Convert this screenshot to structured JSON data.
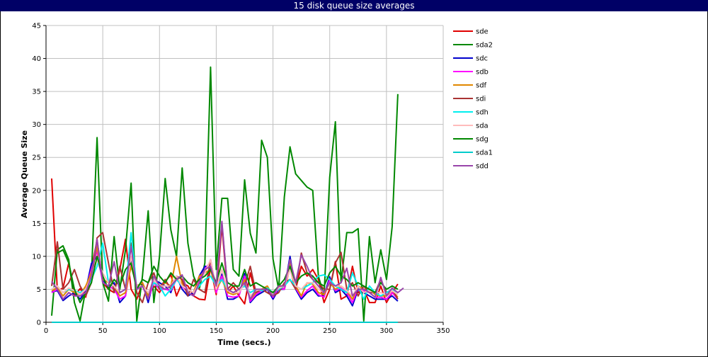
{
  "title": "15 disk queue size averages",
  "chart_data": {
    "type": "line",
    "title": "15 disk queue size averages",
    "xlabel": "Time (secs.)",
    "ylabel": "Average Queue Size",
    "xlim": [
      0,
      350
    ],
    "ylim": [
      0,
      45
    ],
    "xticks": [
      0,
      50,
      100,
      150,
      200,
      250,
      300,
      350
    ],
    "yticks": [
      0,
      5,
      10,
      15,
      20,
      25,
      30,
      35,
      40,
      45
    ],
    "grid": true,
    "legend_position": "right",
    "x": [
      5,
      10,
      15,
      20,
      25,
      30,
      35,
      40,
      45,
      50,
      55,
      60,
      65,
      70,
      75,
      80,
      85,
      90,
      95,
      100,
      105,
      110,
      115,
      120,
      125,
      130,
      135,
      140,
      145,
      150,
      155,
      160,
      165,
      170,
      175,
      180,
      185,
      190,
      195,
      200,
      205,
      210,
      215,
      220,
      225,
      230,
      235,
      240,
      245,
      250,
      255,
      260,
      265,
      270,
      275,
      280,
      285,
      290,
      295,
      300,
      305,
      310,
      315
    ],
    "series": [
      {
        "name": "sde",
        "color": "#e00000",
        "values": [
          21.8,
          4.8,
          5.2,
          9.0,
          4.0,
          5.1,
          3.8,
          8.0,
          12.5,
          6.0,
          5.0,
          4.5,
          8.0,
          12.6,
          5.0,
          3.5,
          6.0,
          4.0,
          5.5,
          4.5,
          6.2,
          7.2,
          4.0,
          6.0,
          5.5,
          4.0,
          3.5,
          3.4,
          8.3,
          4.2,
          14.6,
          4.5,
          5.5,
          4.0,
          2.8,
          7.5,
          4.0,
          5.0,
          4.5,
          4.0,
          5.5,
          5.0,
          8.2,
          5.0,
          8.5,
          7.0,
          8.0,
          6.5,
          3.0,
          5.0,
          9.2,
          3.5,
          4.0,
          8.5,
          4.5,
          5.0,
          3.0,
          3.0,
          5.5,
          3.0,
          4.5,
          5.8,
          null
        ]
      },
      {
        "name": "sda2",
        "color": "#008800",
        "values": [
          1.0,
          11.0,
          11.6,
          9.5,
          3.0,
          0.2,
          5.0,
          7.0,
          28.0,
          6.0,
          3.2,
          13.0,
          5.0,
          11.0,
          21.1,
          0.2,
          7.0,
          16.9,
          3.0,
          10.0,
          21.8,
          14.0,
          10.0,
          23.4,
          12.0,
          7.0,
          5.0,
          9.0,
          38.7,
          8.0,
          18.8,
          18.8,
          8.0,
          7.0,
          21.6,
          13.5,
          10.5,
          27.6,
          25.0,
          9.6,
          5.0,
          19.0,
          26.6,
          22.5,
          21.5,
          20.5,
          20.0,
          7.0,
          4.0,
          22.0,
          30.4,
          6.0,
          13.6,
          13.6,
          14.2,
          0.2,
          13.0,
          6.0,
          11.0,
          6.5,
          14.5,
          34.6,
          null
        ]
      },
      {
        "name": "sdc",
        "color": "#0000cc",
        "values": [
          4.6,
          4.8,
          3.3,
          4.0,
          4.5,
          3.5,
          4.8,
          8.9,
          10.0,
          6.5,
          5.2,
          6.0,
          3.0,
          4.0,
          9.8,
          5.5,
          6.0,
          3.0,
          6.5,
          6.0,
          5.5,
          4.5,
          7.0,
          5.0,
          4.0,
          4.5,
          7.0,
          8.5,
          8.3,
          5.0,
          7.3,
          3.5,
          3.5,
          4.0,
          7.4,
          3.0,
          4.0,
          4.5,
          5.0,
          3.5,
          5.0,
          5.0,
          10.0,
          5.0,
          3.5,
          4.5,
          5.0,
          4.0,
          4.0,
          6.9,
          4.5,
          5.0,
          4.0,
          2.5,
          5.0,
          4.5,
          4.0,
          3.5,
          3.5,
          3.5,
          4.0,
          3.2,
          null
        ]
      },
      {
        "name": "sdb",
        "color": "#ff00ff",
        "values": [
          4.5,
          5.0,
          3.5,
          4.5,
          4.0,
          4.0,
          5.0,
          8.0,
          10.8,
          6.0,
          5.5,
          5.0,
          3.5,
          4.0,
          9.0,
          5.0,
          5.5,
          3.5,
          6.0,
          5.0,
          5.0,
          4.8,
          6.5,
          5.5,
          4.5,
          4.0,
          6.5,
          8.0,
          9.2,
          4.5,
          7.0,
          4.0,
          3.8,
          4.0,
          7.0,
          3.2,
          4.2,
          4.8,
          5.2,
          3.8,
          5.2,
          5.0,
          9.5,
          5.2,
          3.8,
          4.8,
          5.5,
          4.2,
          3.8,
          6.5,
          4.8,
          5.2,
          4.5,
          3.0,
          5.2,
          4.8,
          4.5,
          3.8,
          3.8,
          3.5,
          4.5,
          3.5,
          null
        ]
      },
      {
        "name": "sdf",
        "color": "#e08800",
        "values": [
          4.8,
          5.2,
          4.0,
          5.0,
          4.5,
          4.2,
          5.5,
          7.5,
          11.5,
          6.5,
          6.0,
          5.5,
          4.0,
          4.5,
          8.5,
          5.5,
          6.0,
          4.0,
          6.5,
          5.5,
          6.0,
          5.5,
          10.0,
          5.8,
          5.0,
          4.5,
          7.0,
          7.5,
          8.0,
          5.0,
          6.5,
          4.5,
          4.2,
          4.5,
          6.5,
          3.5,
          4.5,
          5.0,
          5.5,
          4.0,
          5.5,
          5.5,
          9.0,
          5.5,
          4.0,
          6.0,
          5.8,
          4.5,
          4.2,
          6.0,
          5.0,
          5.5,
          4.8,
          3.5,
          5.5,
          5.0,
          5.0,
          4.2,
          4.0,
          4.0,
          4.8,
          3.8,
          null
        ]
      },
      {
        "name": "sdi",
        "color": "#aa3333",
        "values": [
          5.5,
          12.2,
          5.0,
          6.0,
          8.0,
          5.5,
          4.0,
          6.0,
          12.8,
          13.6,
          9.0,
          4.5,
          8.5,
          5.0,
          12.0,
          4.5,
          3.0,
          6.0,
          7.5,
          5.0,
          6.5,
          5.0,
          7.0,
          6.5,
          4.0,
          6.5,
          5.0,
          4.5,
          9.5,
          5.0,
          15.0,
          5.0,
          6.0,
          5.0,
          5.5,
          8.5,
          4.5,
          5.0,
          4.5,
          4.0,
          4.5,
          6.0,
          6.5,
          5.0,
          10.5,
          7.5,
          6.5,
          6.0,
          5.0,
          5.0,
          9.0,
          10.6,
          5.0,
          6.0,
          4.0,
          5.5,
          4.5,
          4.5,
          6.5,
          4.5,
          5.0,
          3.5,
          null
        ]
      },
      {
        "name": "sdh",
        "color": "#00eeee",
        "values": [
          5.0,
          5.5,
          4.5,
          5.0,
          4.8,
          4.5,
          5.0,
          6.5,
          8.5,
          12.0,
          6.0,
          5.5,
          4.5,
          5.0,
          13.6,
          5.0,
          5.5,
          4.5,
          6.0,
          5.5,
          4.0,
          5.0,
          6.5,
          5.5,
          5.0,
          4.5,
          5.5,
          6.5,
          7.0,
          5.5,
          6.5,
          5.0,
          4.5,
          5.0,
          5.5,
          4.5,
          5.0,
          4.8,
          5.2,
          4.5,
          5.0,
          5.5,
          6.5,
          5.5,
          5.0,
          5.5,
          6.0,
          7.0,
          7.2,
          6.5,
          5.5,
          5.0,
          4.5,
          7.5,
          5.5,
          3.5,
          5.5,
          4.5,
          4.0,
          4.5,
          5.0,
          4.5,
          null
        ]
      },
      {
        "name": "sda",
        "color": "#ffbbbb",
        "values": [
          5.0,
          5.5,
          4.5,
          5.2,
          4.8,
          4.2,
          5.0,
          7.0,
          9.5,
          7.5,
          6.0,
          5.5,
          4.5,
          5.0,
          10.0,
          5.5,
          5.5,
          4.5,
          6.5,
          5.5,
          5.5,
          5.5,
          7.0,
          5.5,
          5.0,
          4.5,
          6.0,
          7.5,
          9.5,
          5.0,
          8.0,
          4.8,
          4.5,
          4.5,
          6.0,
          4.0,
          4.8,
          5.0,
          5.0,
          4.2,
          5.2,
          5.5,
          8.0,
          5.5,
          5.0,
          6.0,
          6.0,
          5.0,
          4.5,
          6.0,
          5.5,
          5.5,
          4.8,
          4.0,
          5.5,
          4.5,
          4.8,
          4.5,
          4.5,
          4.2,
          4.8,
          4.2,
          null
        ]
      },
      {
        "name": "sdg",
        "color": "#008800",
        "values": [
          null,
          10.5,
          11.0,
          9.0,
          5.0,
          3.0,
          4.5,
          6.0,
          10.0,
          7.0,
          5.0,
          6.5,
          5.5,
          8.0,
          9.0,
          5.0,
          6.5,
          6.0,
          8.5,
          7.0,
          6.0,
          7.5,
          6.5,
          7.0,
          6.0,
          5.5,
          6.5,
          7.0,
          8.0,
          6.0,
          9.0,
          6.0,
          5.5,
          5.5,
          8.0,
          5.5,
          6.0,
          5.5,
          5.0,
          4.5,
          5.5,
          6.5,
          8.5,
          6.0,
          7.0,
          7.5,
          7.0,
          6.0,
          5.5,
          7.5,
          8.5,
          7.0,
          6.5,
          5.5,
          6.0,
          5.5,
          5.0,
          4.5,
          6.0,
          5.0,
          5.5,
          5.0,
          null
        ]
      },
      {
        "name": "sda1",
        "color": "#00cccc",
        "values": [
          0,
          0,
          0,
          0,
          0,
          0,
          0,
          0,
          0,
          0,
          0,
          0,
          0,
          0,
          0,
          0,
          0,
          0,
          0,
          0,
          0,
          0,
          0,
          0,
          0,
          0,
          0,
          0,
          0,
          0,
          0,
          0,
          0,
          0,
          0,
          0,
          0,
          0,
          0,
          0,
          0,
          0,
          0,
          0,
          0,
          0,
          0,
          0,
          0,
          0,
          0,
          0,
          0,
          0,
          0,
          0,
          0,
          0,
          0,
          0,
          0,
          0,
          null
        ]
      },
      {
        "name": "sdd",
        "color": "#9944aa",
        "values": [
          6.2,
          5.0,
          3.5,
          4.5,
          4.0,
          4.0,
          4.5,
          7.0,
          12.6,
          6.0,
          5.5,
          9.2,
          4.5,
          5.0,
          11.5,
          5.0,
          5.5,
          3.5,
          7.0,
          5.5,
          5.0,
          5.5,
          6.5,
          7.2,
          4.5,
          4.0,
          6.0,
          8.0,
          8.5,
          5.5,
          15.3,
          5.0,
          4.5,
          5.0,
          6.0,
          3.5,
          5.0,
          5.0,
          5.0,
          4.0,
          5.5,
          5.5,
          9.5,
          6.0,
          10.2,
          8.5,
          6.5,
          5.5,
          4.5,
          6.0,
          5.5,
          6.0,
          8.2,
          4.0,
          5.0,
          5.0,
          4.5,
          3.8,
          6.8,
          4.0,
          5.2,
          4.5,
          5.2
        ]
      }
    ]
  }
}
